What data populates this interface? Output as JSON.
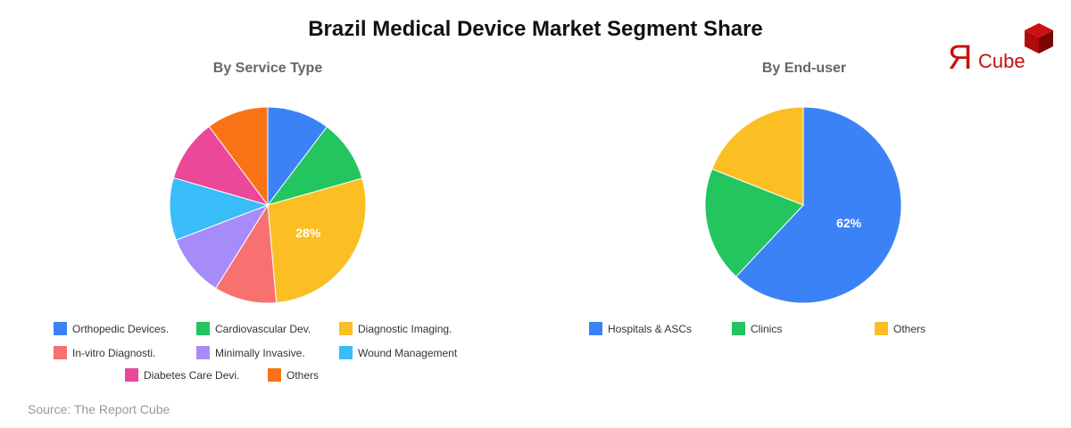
{
  "title": "Brazil Medical Device Market Segment Share",
  "source": "Source: The Report Cube",
  "logo": {
    "r": "Я",
    "text": "Cube"
  },
  "chart_data": [
    {
      "type": "pie",
      "title": "By Service Type",
      "categories": [
        "Orthopedic Devices.",
        "Cardiovascular Dev.",
        "Diagnostic Imaging.",
        "In-vitro Diagnosti.",
        "Minimally Invasive.",
        "Wound Management",
        "Diabetes Care Devi.",
        "Others"
      ],
      "values": [
        10.3,
        10.3,
        28,
        10.3,
        10.3,
        10.3,
        10.3,
        10.2
      ],
      "colors": [
        "#3b82f6",
        "#22c55e",
        "#fbbf24",
        "#f87171",
        "#a78bfa",
        "#38bdf8",
        "#ec4899",
        "#f97316"
      ],
      "labels_shown": {
        "2": "28%"
      },
      "legend_position": "bottom"
    },
    {
      "type": "pie",
      "title": "By End-user",
      "categories": [
        "Hospitals & ASCs",
        "Clinics",
        "Others"
      ],
      "values": [
        62,
        19,
        19
      ],
      "colors": [
        "#3b82f6",
        "#22c55e",
        "#fbbf24"
      ],
      "labels_shown": {
        "0": "62%"
      },
      "legend_position": "bottom"
    }
  ]
}
